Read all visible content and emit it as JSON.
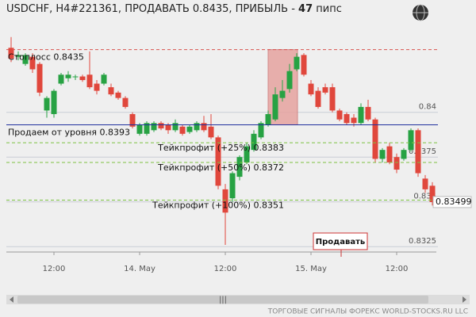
{
  "header": {
    "title": "USDCHF, H4#221361, ПРОДАВАТЬ 0.8435, ПРИБЫЛЬ -",
    "profit": 47,
    "unit": "пипс"
  },
  "chart_data": {
    "type": "candlestick",
    "categories": [
      null,
      null,
      null,
      null,
      null,
      null,
      "12:00",
      null,
      null,
      null,
      null,
      null,
      null,
      null,
      null,
      null,
      null,
      null,
      "14. May",
      null,
      null,
      null,
      null,
      null,
      null,
      null,
      null,
      null,
      null,
      null,
      "12:00",
      null,
      null,
      null,
      null,
      null,
      null,
      null,
      null,
      null,
      null,
      null,
      "15. May",
      null,
      null,
      null,
      null,
      null,
      null,
      null,
      null,
      null,
      null,
      null,
      "12:00",
      null,
      null,
      null,
      null,
      null
    ],
    "open": [
      0.8436,
      0.8431,
      0.8427,
      0.8431,
      0.8427,
      0.8401,
      0.8399,
      0.8416,
      0.8419,
      0.842,
      0.842,
      0.8421,
      0.8416,
      0.8416,
      0.8414,
      0.8411,
      0.8408,
      0.8399,
      0.8388,
      0.8388,
      0.839,
      0.8394,
      0.8393,
      0.839,
      0.8392,
      0.8389,
      0.839,
      0.8394,
      0.8392,
      0.8386,
      0.8357,
      0.8352,
      0.8364,
      0.8372,
      0.8379,
      0.8386,
      0.8393,
      0.8396,
      0.8408,
      0.8413,
      0.8424,
      0.8432,
      0.8416,
      0.8412,
      0.8414,
      0.8414,
      0.8401,
      0.8399,
      0.8397,
      0.8394,
      0.8403,
      0.8396,
      0.8374,
      0.8381,
      0.8375,
      0.8374,
      0.8379,
      0.839,
      0.8363,
      0.8359
    ],
    "high": [
      0.8442,
      0.8434,
      0.8433,
      0.8433,
      0.8428,
      0.8409,
      0.8413,
      0.8422,
      0.8423,
      0.8421,
      0.8421,
      0.8434,
      0.8418,
      0.8422,
      0.8416,
      0.8412,
      0.8409,
      0.84,
      0.8394,
      0.8395,
      0.8395,
      0.8395,
      0.8394,
      0.8396,
      0.8393,
      0.8393,
      0.8395,
      0.8398,
      0.8399,
      0.8387,
      0.836,
      0.8367,
      0.8376,
      0.8383,
      0.839,
      0.8395,
      0.8401,
      0.8414,
      0.8418,
      0.8427,
      0.8433,
      0.8433,
      0.8418,
      0.8414,
      0.8416,
      0.8416,
      0.8402,
      0.84,
      0.8399,
      0.8405,
      0.8407,
      0.8397,
      0.838,
      0.8383,
      0.8377,
      0.838,
      0.8391,
      0.8391,
      0.8365,
      0.8361
    ],
    "low": [
      0.8428,
      0.8429,
      0.8426,
      0.8422,
      0.8409,
      0.8397,
      0.8397,
      0.8415,
      0.8417,
      0.8418,
      0.8417,
      0.8413,
      0.841,
      0.8415,
      0.8409,
      0.8407,
      0.8402,
      0.8391,
      0.8387,
      0.8387,
      0.8389,
      0.839,
      0.8388,
      0.8389,
      0.8387,
      0.8388,
      0.8389,
      0.8389,
      0.8385,
      0.8357,
      0.8326,
      0.835,
      0.8362,
      0.8371,
      0.8378,
      0.8385,
      0.8392,
      0.8395,
      0.8406,
      0.8411,
      0.8423,
      0.842,
      0.8409,
      0.8402,
      0.841,
      0.84,
      0.8395,
      0.8393,
      0.8392,
      0.8393,
      0.8395,
      0.8372,
      0.8372,
      0.8371,
      0.8366,
      0.8373,
      0.8378,
      0.8364,
      0.8355,
      0.8348
    ],
    "close": [
      0.843,
      0.8432,
      0.8432,
      0.8424,
      0.8411,
      0.8408,
      0.8412,
      0.8421,
      0.8421,
      0.842,
      0.8418,
      0.8414,
      0.8412,
      0.8421,
      0.841,
      0.8408,
      0.8403,
      0.8392,
      0.8393,
      0.8394,
      0.8394,
      0.8391,
      0.839,
      0.8394,
      0.8388,
      0.8392,
      0.8394,
      0.839,
      0.8386,
      0.8359,
      0.8344,
      0.8366,
      0.8375,
      0.8381,
      0.8388,
      0.8394,
      0.8399,
      0.841,
      0.8412,
      0.8423,
      0.8431,
      0.8421,
      0.841,
      0.8403,
      0.8411,
      0.8401,
      0.8396,
      0.8394,
      0.8394,
      0.8403,
      0.8396,
      0.8374,
      0.8379,
      0.8372,
      0.8368,
      0.8379,
      0.839,
      0.8366,
      0.8357,
      0.83499
    ],
    "up_color": "#27a243",
    "down_color": "#e0473c",
    "ylim": [
      0.8322,
      0.8445
    ],
    "yticks": [
      0.84,
      0.8375,
      0.835,
      0.8325
    ],
    "grid": true,
    "levels": [
      {
        "name": "Стоплосс",
        "value": 0.8435,
        "color": "#d9534f",
        "dashed": true
      },
      {
        "name": "Продаем от уровня",
        "value": 0.8393,
        "color": "#1f2f9e",
        "dashed": false
      },
      {
        "name": "Тейкпрофит (+25%)",
        "value": 0.8383,
        "color": "#7cc242",
        "dashed": true
      },
      {
        "name": "Тейкпрофит (+50%)",
        "value": 0.8372,
        "color": "#7cc242",
        "dashed": true
      },
      {
        "name": "Тейкпрофит (+100%)",
        "value": 0.8351,
        "color": "#7cc242",
        "dashed": true
      }
    ],
    "signal": "Продавать"
  },
  "footer": "ТОРГОВЫЕ СИГНАЛЫ ФОРЕКС WORLD-STOCKS.RU LLC"
}
